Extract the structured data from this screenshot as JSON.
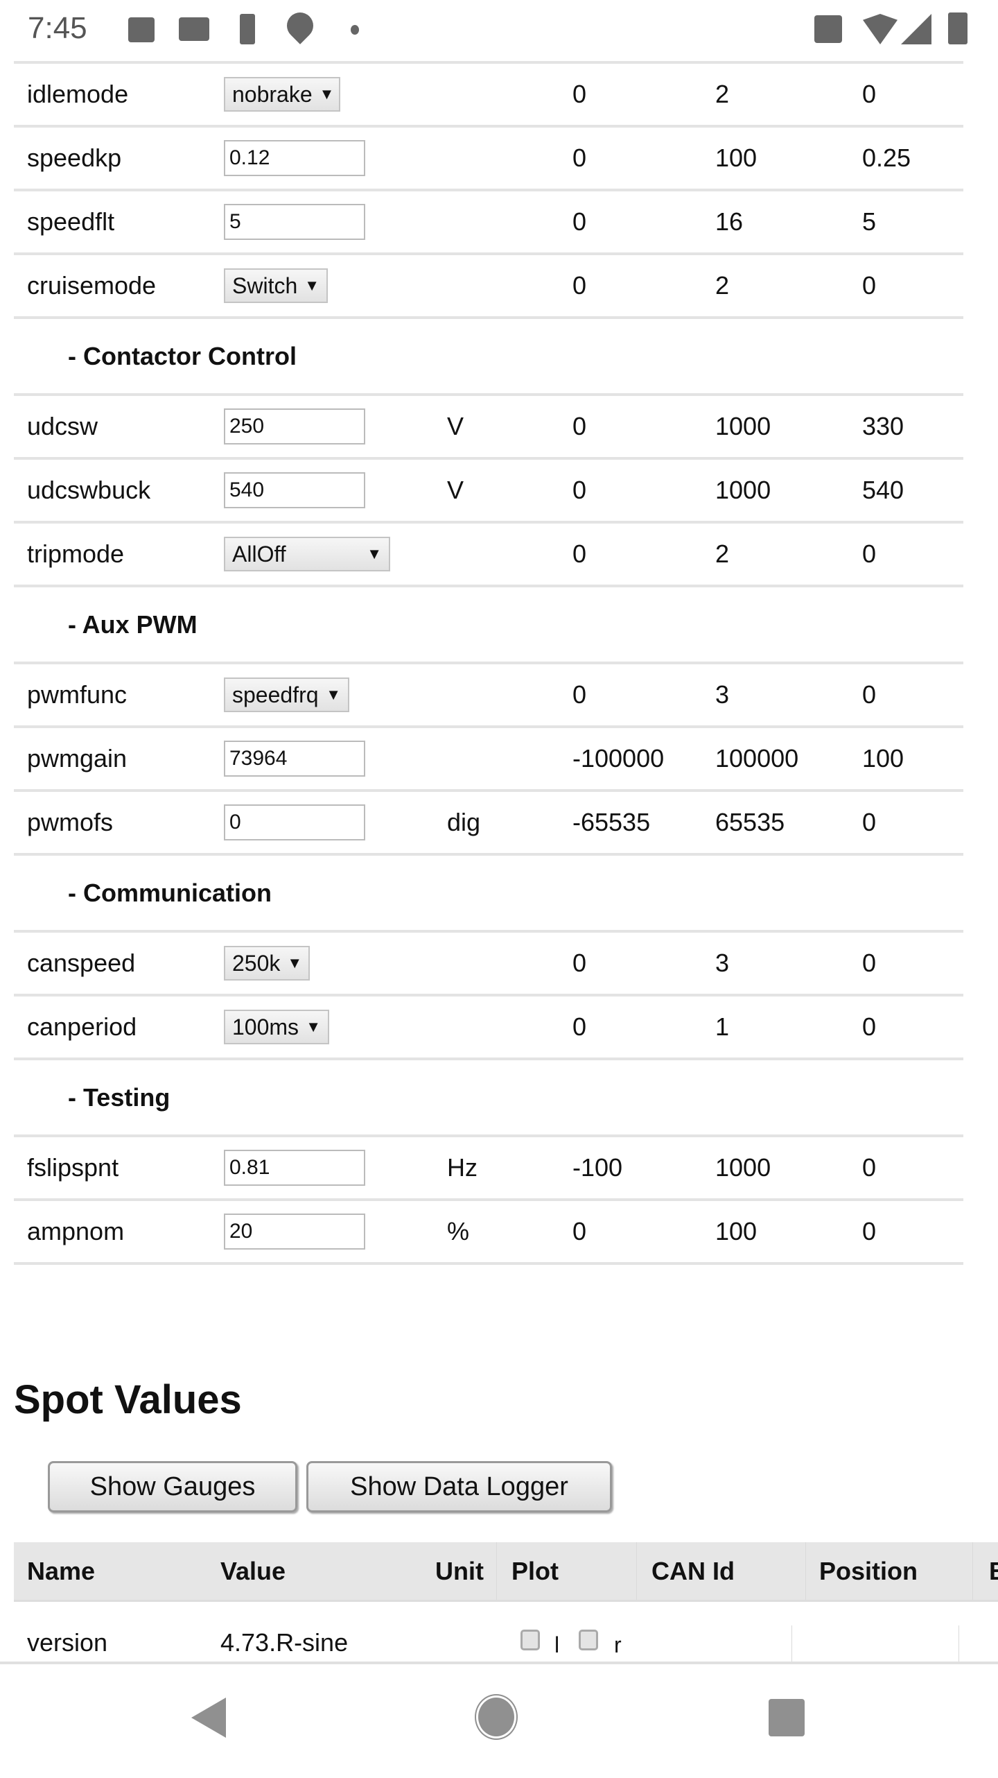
{
  "status_bar": {
    "time": "7:45",
    "icons_left": [
      "image-icon",
      "gmail-icon",
      "battery-saver-icon",
      "location-pin-icon",
      "dot-icon"
    ],
    "icons_right": [
      "vibrate-icon",
      "wifi-icon",
      "signal-icon",
      "battery-icon"
    ]
  },
  "params": [
    {
      "type": "select",
      "name": "idlemode",
      "value": "nobrake",
      "unit": "",
      "min": "0",
      "max": "2",
      "default": "0"
    },
    {
      "type": "input",
      "name": "speedkp",
      "value": "0.12",
      "unit": "",
      "min": "0",
      "max": "100",
      "default": "0.25"
    },
    {
      "type": "input",
      "name": "speedflt",
      "value": "5",
      "unit": "",
      "min": "0",
      "max": "16",
      "default": "5"
    },
    {
      "type": "select",
      "name": "cruisemode",
      "value": "Switch",
      "unit": "",
      "min": "0",
      "max": "2",
      "default": "0"
    },
    {
      "type": "section",
      "title": "- Contactor Control"
    },
    {
      "type": "input",
      "name": "udcsw",
      "value": "250",
      "unit": "V",
      "min": "0",
      "max": "1000",
      "default": "330"
    },
    {
      "type": "input",
      "name": "udcswbuck",
      "value": "540",
      "unit": "V",
      "min": "0",
      "max": "1000",
      "default": "540"
    },
    {
      "type": "select",
      "name": "tripmode",
      "value": "AllOff",
      "unit": "",
      "min": "0",
      "max": "2",
      "default": "0"
    },
    {
      "type": "section",
      "title": "- Aux PWM"
    },
    {
      "type": "select",
      "name": "pwmfunc",
      "value": "speedfrq",
      "unit": "",
      "min": "0",
      "max": "3",
      "default": "0"
    },
    {
      "type": "input",
      "name": "pwmgain",
      "value": "73964",
      "unit": "",
      "min": "-100000",
      "max": "100000",
      "default": "100"
    },
    {
      "type": "input",
      "name": "pwmofs",
      "value": "0",
      "unit": "dig",
      "min": "-65535",
      "max": "65535",
      "default": "0"
    },
    {
      "type": "section",
      "title": "- Communication"
    },
    {
      "type": "select",
      "name": "canspeed",
      "value": "250k",
      "unit": "",
      "min": "0",
      "max": "3",
      "default": "0"
    },
    {
      "type": "select",
      "name": "canperiod",
      "value": "100ms",
      "unit": "",
      "min": "0",
      "max": "1",
      "default": "0"
    },
    {
      "type": "section",
      "title": "- Testing"
    },
    {
      "type": "input",
      "name": "fslipspnt",
      "value": "0.81",
      "unit": "Hz",
      "min": "-100",
      "max": "1000",
      "default": "0"
    },
    {
      "type": "input",
      "name": "ampnom",
      "value": "20",
      "unit": "%",
      "min": "0",
      "max": "100",
      "default": "0"
    }
  ],
  "spot_values": {
    "title": "Spot Values",
    "show_gauges": "Show Gauges",
    "show_data_logger": "Show Data Logger",
    "columns": [
      "Name",
      "Value",
      "Unit",
      "Plot",
      "CAN Id",
      "Position",
      "B"
    ],
    "rows": [
      {
        "name": "version",
        "value": "4.73.R-sine",
        "plot_labels": [
          "l",
          "r"
        ]
      }
    ]
  }
}
